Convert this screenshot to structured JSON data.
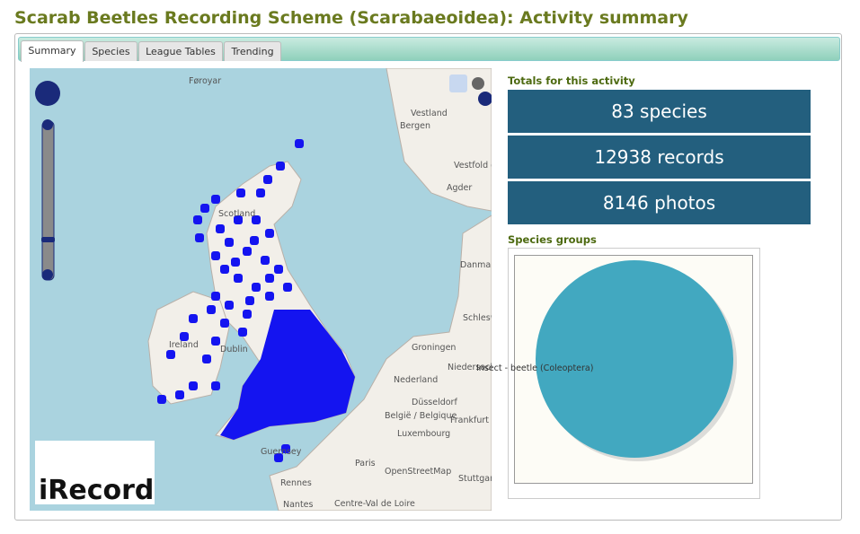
{
  "header": {
    "title": "Scarab Beetles Recording Scheme (Scarabaeoidea): Activity summary"
  },
  "tabs": [
    "Summary",
    "Species",
    "League Tables",
    "Trending"
  ],
  "totals": {
    "heading": "Totals for this activity",
    "items": [
      "83 species",
      "12938 records",
      "8146 photos"
    ]
  },
  "species_groups": {
    "heading": "Species groups",
    "chart_data": {
      "type": "pie",
      "categories": [
        "Insect - beetle (Coleoptera)"
      ],
      "values": [
        100
      ],
      "color": "#42a8c0"
    }
  },
  "map": {
    "logo": "iRecord",
    "labels": [
      "Føroyar",
      "Vestland",
      "Bergen",
      "Vestfold og Telemark",
      "Agder",
      "Scotland",
      "Danmark",
      "Schleswig-Holstein",
      "Ireland",
      "Dublin",
      "Groningen",
      "Niedersachsen",
      "Nederland",
      "Düsseldorf",
      "België / Belgique",
      "Frankfurt am Main",
      "Luxembourg",
      "Guernsey",
      "Paris",
      "OpenStreetMap",
      "Stuttgart",
      "Rennes",
      "Nantes",
      "Centre-Val de Loire"
    ]
  }
}
